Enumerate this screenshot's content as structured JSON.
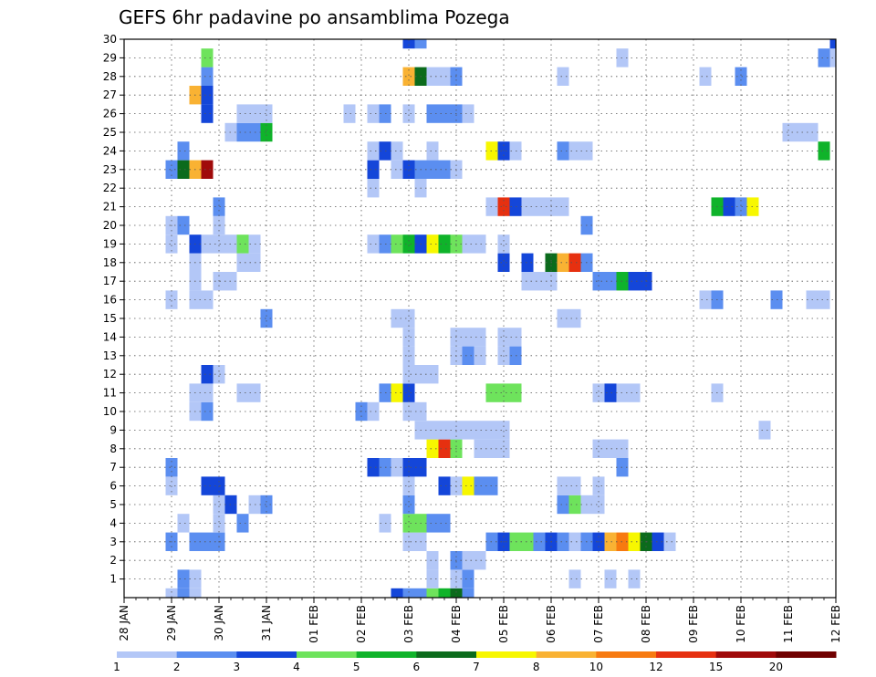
{
  "chart_data": {
    "type": "heatmap",
    "title": "GEFS 6hr padavine po ansamblima Pozega",
    "xlabel": "",
    "ylabel": "",
    "x_ticks": [
      "28 JAN",
      "29 JAN",
      "30 JAN",
      "31 JAN",
      "01 FEB",
      "02 FEB",
      "03 FEB",
      "04 FEB",
      "05 FEB",
      "06 FEB",
      "07 FEB",
      "08 FEB",
      "09 FEB",
      "10 FEB",
      "11 FEB",
      "12 FEB"
    ],
    "y_ticks": [
      "1",
      "2",
      "3",
      "4",
      "5",
      "6",
      "7",
      "8",
      "9",
      "10",
      "11",
      "12",
      "13",
      "14",
      "15",
      "16",
      "17",
      "18",
      "19",
      "20",
      "21",
      "22",
      "23",
      "24",
      "25",
      "26",
      "27",
      "28",
      "29",
      "30"
    ],
    "xlim": [
      0,
      60
    ],
    "ylim": [
      0,
      30
    ],
    "x_unit": "6-hour steps from 28 JAN 00Z",
    "grid": true,
    "color_levels": [
      1,
      2,
      3,
      4,
      5,
      6,
      7,
      8,
      10,
      12,
      15,
      20
    ],
    "colors": [
      "#b3c7f7",
      "#5b8ef0",
      "#1446d9",
      "#6ee35c",
      "#0fb32a",
      "#0b6b1c",
      "#f7f700",
      "#f9b233",
      "#f77a10",
      "#e63010",
      "#a00a0a",
      "#700000"
    ],
    "legend_labels": [
      "1",
      "2",
      "3",
      "4",
      "5",
      "6",
      "7",
      "8",
      "10",
      "12",
      "15",
      "20"
    ],
    "legend_position": "bottom",
    "cells": [
      [
        4,
        0,
        0
      ],
      [
        5,
        0,
        1
      ],
      [
        6,
        0,
        0
      ],
      [
        23,
        0,
        2
      ],
      [
        24,
        0,
        1
      ],
      [
        25,
        0,
        1
      ],
      [
        26,
        0,
        3
      ],
      [
        27,
        0,
        4
      ],
      [
        28,
        0,
        5
      ],
      [
        29,
        0,
        1
      ],
      [
        5,
        1,
        1
      ],
      [
        6,
        1,
        0
      ],
      [
        26,
        1,
        0
      ],
      [
        28,
        1,
        0
      ],
      [
        29,
        1,
        1
      ],
      [
        38,
        1,
        0
      ],
      [
        41,
        1,
        0
      ],
      [
        43,
        1,
        0
      ],
      [
        26,
        2,
        0
      ],
      [
        28,
        2,
        1
      ],
      [
        29,
        2,
        0
      ],
      [
        30,
        2,
        0
      ],
      [
        4,
        3,
        1
      ],
      [
        6,
        3,
        1
      ],
      [
        7,
        3,
        1
      ],
      [
        8,
        3,
        1
      ],
      [
        24,
        3,
        0
      ],
      [
        25,
        3,
        0
      ],
      [
        31,
        3,
        1
      ],
      [
        32,
        3,
        2
      ],
      [
        33,
        3,
        3
      ],
      [
        34,
        3,
        3
      ],
      [
        35,
        3,
        1
      ],
      [
        36,
        3,
        2
      ],
      [
        37,
        3,
        1
      ],
      [
        38,
        3,
        0
      ],
      [
        39,
        3,
        1
      ],
      [
        40,
        3,
        2
      ],
      [
        41,
        3,
        7
      ],
      [
        42,
        3,
        8
      ],
      [
        43,
        3,
        6
      ],
      [
        44,
        3,
        5
      ],
      [
        45,
        3,
        2
      ],
      [
        46,
        3,
        0
      ],
      [
        5,
        4,
        0
      ],
      [
        8,
        4,
        0
      ],
      [
        10,
        4,
        1
      ],
      [
        22,
        4,
        0
      ],
      [
        24,
        4,
        3
      ],
      [
        25,
        4,
        3
      ],
      [
        26,
        4,
        1
      ],
      [
        27,
        4,
        1
      ],
      [
        8,
        5,
        0
      ],
      [
        9,
        5,
        2
      ],
      [
        11,
        5,
        0
      ],
      [
        12,
        5,
        1
      ],
      [
        24,
        5,
        1
      ],
      [
        37,
        5,
        1
      ],
      [
        38,
        5,
        3
      ],
      [
        39,
        5,
        0
      ],
      [
        40,
        5,
        0
      ],
      [
        4,
        6,
        0
      ],
      [
        7,
        6,
        2
      ],
      [
        8,
        6,
        2
      ],
      [
        24,
        6,
        0
      ],
      [
        27,
        6,
        2
      ],
      [
        28,
        6,
        0
      ],
      [
        29,
        6,
        6
      ],
      [
        30,
        6,
        1
      ],
      [
        31,
        6,
        1
      ],
      [
        37,
        6,
        0
      ],
      [
        38,
        6,
        0
      ],
      [
        40,
        6,
        0
      ],
      [
        4,
        7,
        1
      ],
      [
        21,
        7,
        2
      ],
      [
        22,
        7,
        1
      ],
      [
        23,
        7,
        0
      ],
      [
        24,
        7,
        2
      ],
      [
        25,
        7,
        2
      ],
      [
        42,
        7,
        1
      ],
      [
        26,
        8,
        6
      ],
      [
        27,
        8,
        9
      ],
      [
        28,
        8,
        3
      ],
      [
        30,
        8,
        0
      ],
      [
        31,
        8,
        0
      ],
      [
        32,
        8,
        0
      ],
      [
        40,
        8,
        0
      ],
      [
        41,
        8,
        0
      ],
      [
        42,
        8,
        0
      ],
      [
        25,
        9,
        0
      ],
      [
        26,
        9,
        0
      ],
      [
        27,
        9,
        0
      ],
      [
        28,
        9,
        0
      ],
      [
        29,
        9,
        0
      ],
      [
        30,
        9,
        0
      ],
      [
        31,
        9,
        0
      ],
      [
        32,
        9,
        0
      ],
      [
        54,
        9,
        0
      ],
      [
        6,
        10,
        0
      ],
      [
        7,
        10,
        1
      ],
      [
        20,
        10,
        1
      ],
      [
        21,
        10,
        0
      ],
      [
        24,
        10,
        0
      ],
      [
        25,
        10,
        0
      ],
      [
        6,
        11,
        0
      ],
      [
        7,
        11,
        0
      ],
      [
        10,
        11,
        0
      ],
      [
        11,
        11,
        0
      ],
      [
        22,
        11,
        1
      ],
      [
        23,
        11,
        6
      ],
      [
        24,
        11,
        2
      ],
      [
        31,
        11,
        3
      ],
      [
        32,
        11,
        3
      ],
      [
        33,
        11,
        3
      ],
      [
        40,
        11,
        0
      ],
      [
        41,
        11,
        2
      ],
      [
        42,
        11,
        0
      ],
      [
        43,
        11,
        0
      ],
      [
        50,
        11,
        0
      ],
      [
        7,
        12,
        2
      ],
      [
        8,
        12,
        0
      ],
      [
        24,
        12,
        0
      ],
      [
        25,
        12,
        0
      ],
      [
        26,
        12,
        0
      ],
      [
        24,
        13,
        0
      ],
      [
        28,
        13,
        0
      ],
      [
        29,
        13,
        1
      ],
      [
        30,
        13,
        0
      ],
      [
        32,
        13,
        0
      ],
      [
        33,
        13,
        1
      ],
      [
        24,
        14,
        0
      ],
      [
        28,
        14,
        0
      ],
      [
        29,
        14,
        0
      ],
      [
        30,
        14,
        0
      ],
      [
        32,
        14,
        0
      ],
      [
        33,
        14,
        0
      ],
      [
        12,
        15,
        1
      ],
      [
        23,
        15,
        0
      ],
      [
        24,
        15,
        0
      ],
      [
        37,
        15,
        0
      ],
      [
        38,
        15,
        0
      ],
      [
        4,
        16,
        0
      ],
      [
        6,
        16,
        0
      ],
      [
        7,
        16,
        0
      ],
      [
        49,
        16,
        0
      ],
      [
        50,
        16,
        1
      ],
      [
        55,
        16,
        1
      ],
      [
        58,
        16,
        0
      ],
      [
        59,
        16,
        0
      ],
      [
        6,
        17,
        0
      ],
      [
        8,
        17,
        0
      ],
      [
        9,
        17,
        0
      ],
      [
        34,
        17,
        0
      ],
      [
        35,
        17,
        0
      ],
      [
        36,
        17,
        0
      ],
      [
        40,
        17,
        1
      ],
      [
        41,
        17,
        1
      ],
      [
        42,
        17,
        4
      ],
      [
        43,
        17,
        2
      ],
      [
        44,
        17,
        2
      ],
      [
        6,
        18,
        0
      ],
      [
        10,
        18,
        0
      ],
      [
        11,
        18,
        0
      ],
      [
        32,
        18,
        2
      ],
      [
        34,
        18,
        2
      ],
      [
        36,
        18,
        5
      ],
      [
        37,
        18,
        7
      ],
      [
        38,
        18,
        9
      ],
      [
        39,
        18,
        1
      ],
      [
        4,
        19,
        0
      ],
      [
        6,
        19,
        2
      ],
      [
        7,
        19,
        0
      ],
      [
        8,
        19,
        0
      ],
      [
        9,
        19,
        0
      ],
      [
        10,
        19,
        3
      ],
      [
        11,
        19,
        0
      ],
      [
        21,
        19,
        0
      ],
      [
        22,
        19,
        1
      ],
      [
        23,
        19,
        3
      ],
      [
        24,
        19,
        4
      ],
      [
        25,
        19,
        2
      ],
      [
        26,
        19,
        6
      ],
      [
        27,
        19,
        4
      ],
      [
        28,
        19,
        3
      ],
      [
        29,
        19,
        0
      ],
      [
        30,
        19,
        0
      ],
      [
        32,
        19,
        0
      ],
      [
        4,
        20,
        0
      ],
      [
        5,
        20,
        1
      ],
      [
        8,
        20,
        0
      ],
      [
        39,
        20,
        1
      ],
      [
        8,
        21,
        1
      ],
      [
        31,
        21,
        0
      ],
      [
        32,
        21,
        9
      ],
      [
        33,
        21,
        2
      ],
      [
        34,
        21,
        0
      ],
      [
        35,
        21,
        0
      ],
      [
        36,
        21,
        0
      ],
      [
        37,
        21,
        0
      ],
      [
        50,
        21,
        4
      ],
      [
        51,
        21,
        2
      ],
      [
        52,
        21,
        1
      ],
      [
        53,
        21,
        6
      ],
      [
        21,
        22,
        0
      ],
      [
        25,
        22,
        0
      ],
      [
        4,
        23,
        1
      ],
      [
        5,
        23,
        5
      ],
      [
        6,
        23,
        7
      ],
      [
        7,
        23,
        10
      ],
      [
        21,
        23,
        2
      ],
      [
        23,
        23,
        0
      ],
      [
        24,
        23,
        2
      ],
      [
        25,
        23,
        1
      ],
      [
        26,
        23,
        1
      ],
      [
        27,
        23,
        1
      ],
      [
        28,
        23,
        0
      ],
      [
        5,
        24,
        1
      ],
      [
        21,
        24,
        0
      ],
      [
        22,
        24,
        2
      ],
      [
        23,
        24,
        0
      ],
      [
        26,
        24,
        0
      ],
      [
        31,
        24,
        6
      ],
      [
        32,
        24,
        2
      ],
      [
        33,
        24,
        0
      ],
      [
        37,
        24,
        1
      ],
      [
        38,
        24,
        0
      ],
      [
        39,
        24,
        0
      ],
      [
        59,
        24,
        4
      ],
      [
        9,
        25,
        0
      ],
      [
        10,
        25,
        1
      ],
      [
        11,
        25,
        1
      ],
      [
        12,
        25,
        4
      ],
      [
        56,
        25,
        0
      ],
      [
        57,
        25,
        0
      ],
      [
        58,
        25,
        0
      ],
      [
        7,
        26,
        2
      ],
      [
        10,
        26,
        0
      ],
      [
        11,
        26,
        0
      ],
      [
        12,
        26,
        0
      ],
      [
        19,
        26,
        0
      ],
      [
        21,
        26,
        0
      ],
      [
        22,
        26,
        1
      ],
      [
        24,
        26,
        0
      ],
      [
        26,
        26,
        1
      ],
      [
        27,
        26,
        1
      ],
      [
        28,
        26,
        1
      ],
      [
        29,
        26,
        0
      ],
      [
        6,
        27,
        7
      ],
      [
        7,
        27,
        2
      ],
      [
        7,
        28,
        1
      ],
      [
        24,
        28,
        7
      ],
      [
        25,
        28,
        5
      ],
      [
        26,
        28,
        0
      ],
      [
        27,
        28,
        0
      ],
      [
        28,
        28,
        1
      ],
      [
        37,
        28,
        0
      ],
      [
        49,
        28,
        0
      ],
      [
        52,
        28,
        1
      ],
      [
        7,
        29,
        3
      ],
      [
        42,
        29,
        0
      ],
      [
        59,
        29,
        1
      ],
      [
        60,
        29,
        0
      ],
      [
        24,
        30,
        2
      ],
      [
        25,
        30,
        1
      ],
      [
        60,
        30,
        2
      ]
    ]
  }
}
